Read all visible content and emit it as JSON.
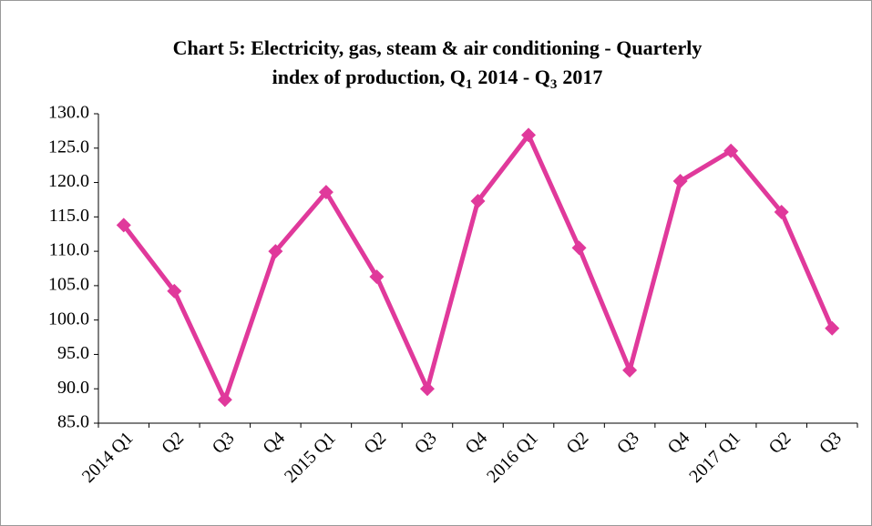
{
  "chart_data": {
    "type": "line",
    "title": [
      "Chart 5: Electricity, gas, steam & air conditioning - Quarterly",
      "index of production, Q",
      "1",
      "2014 - Q",
      "3",
      "2017"
    ],
    "categories": [
      "2014 Q1",
      "Q2",
      "Q3",
      "Q4",
      "2015 Q1",
      "Q2",
      "Q3",
      "Q4",
      "2016 Q1",
      "Q2",
      "Q3",
      "Q4",
      "2017 Q1",
      "Q2",
      "Q3"
    ],
    "series": [
      {
        "name": null,
        "color": "#e0399b",
        "values": [
          113.8,
          104.2,
          88.4,
          110.0,
          118.6,
          106.3,
          90.0,
          117.3,
          126.9,
          110.5,
          92.7,
          120.2,
          124.6,
          115.7,
          98.8
        ]
      }
    ],
    "ylim": [
      85,
      130
    ],
    "yticks": [
      {
        "value": 85,
        "label": "85.0"
      },
      {
        "value": 90,
        "label": "90.0"
      },
      {
        "value": 95,
        "label": "95.0"
      },
      {
        "value": 100,
        "label": "100.0"
      },
      {
        "value": 105,
        "label": "105.0"
      },
      {
        "value": 110,
        "label": "110.0"
      },
      {
        "value": 115,
        "label": "115.0"
      },
      {
        "value": 120,
        "label": "120.0"
      },
      {
        "value": 125,
        "label": "125.0"
      },
      {
        "value": 130,
        "label": "130.0"
      }
    ],
    "grid": false
  }
}
